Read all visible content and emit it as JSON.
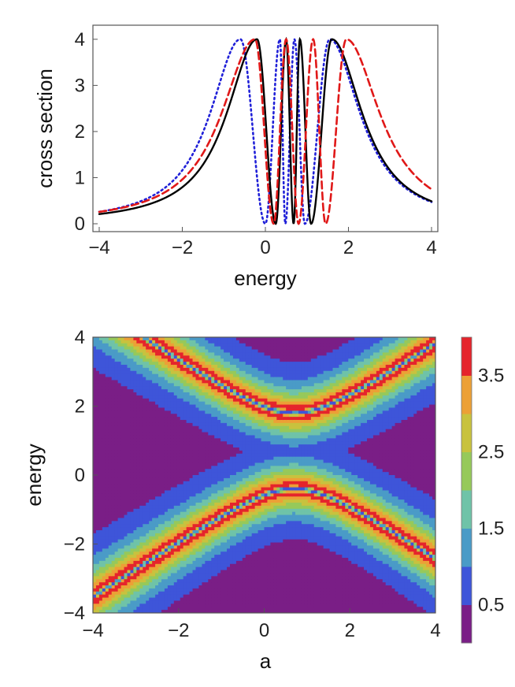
{
  "chart_data": [
    {
      "type": "line",
      "title": "",
      "xlabel": "energy",
      "ylabel": "cross section",
      "xlim": [
        -4,
        4
      ],
      "ylim": [
        0,
        4.1
      ],
      "x_ticks": [
        "−4",
        "−2",
        "0",
        "2",
        "4"
      ],
      "y_ticks": [
        "0",
        "1",
        "2",
        "3",
        "4"
      ],
      "grid": false,
      "series": [
        {
          "name": "blue dotted",
          "style": "dotted",
          "color": "#2020d8",
          "peaks": [
            -0.6,
            0.35,
            0.7,
            1.55
          ],
          "dips": [
            0,
            0.48,
            0.95
          ],
          "params": {
            "kind": "fano",
            "tail": 0.42,
            "width": 1.0
          }
        },
        {
          "name": "black solid",
          "style": "solid",
          "color": "#000000",
          "peaks": [
            -0.2,
            0.5,
            0.83,
            1.6
          ],
          "dips": [
            0.25,
            0.68,
            1.1
          ],
          "params": {
            "kind": "fano",
            "tail": 0.4,
            "width": 1.0
          }
        },
        {
          "name": "red dashed",
          "style": "dashed",
          "color": "#e01818",
          "peaks": [
            -0.25,
            0.5,
            1.15,
            1.95
          ],
          "dips": [
            0.2,
            0.8,
            1.45
          ],
          "params": {
            "kind": "fano",
            "tail": 0.38,
            "width": 1.1
          }
        }
      ]
    },
    {
      "type": "heatmap",
      "title": "",
      "xlabel": "a",
      "ylabel": "energy",
      "xlim": [
        -4,
        4
      ],
      "ylim": [
        -4,
        4
      ],
      "x_ticks": [
        "−4",
        "−2",
        "0",
        "2",
        "4"
      ],
      "y_ticks": [
        "−4",
        "−2",
        "0",
        "2",
        "4"
      ],
      "colorbar": {
        "min": 0,
        "max": 4,
        "labels": [
          "0.5",
          "1.5",
          "2.5",
          "3.5"
        ],
        "label_values": [
          0.5,
          1.5,
          2.5,
          3.5
        ],
        "colors": [
          "#7a1e86",
          "#3e55d9",
          "#4a9bc7",
          "#6fc3a8",
          "#96c95a",
          "#c8c23e",
          "#eca036",
          "#e5242c"
        ]
      },
      "params": {
        "gap_center_energy": 0.7,
        "gap_center_a": 0.7,
        "band_slope": 1.0,
        "band_curvature": 0.55
      }
    }
  ]
}
